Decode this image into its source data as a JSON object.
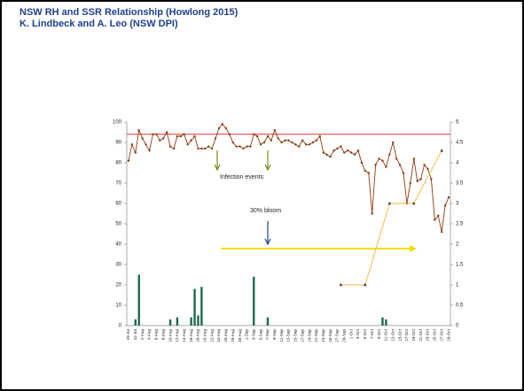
{
  "header": {
    "title": "NSW RH and SSR Relationship (Howlong 2015)",
    "subtitle": "K. Lindbeck and A. Leo (NSW DPI)"
  },
  "chart_data": {
    "type": "line",
    "categories": [
      "29-Jul",
      null,
      "31-Jul",
      null,
      "2-Aug",
      null,
      "4-Aug",
      null,
      "6-Aug",
      null,
      "8-Aug",
      null,
      "10-Aug",
      null,
      "12-Aug",
      null,
      "14-Aug",
      null,
      "16-Aug",
      null,
      "18-Aug",
      null,
      "20-Aug",
      null,
      "22-Aug",
      null,
      "24-Aug",
      null,
      "26-Aug",
      null,
      "28-Aug",
      null,
      "30-Aug",
      null,
      "1-Sep",
      null,
      "3-Sep",
      null,
      "5-Sep",
      null,
      "7-Sep",
      null,
      "9-Sep",
      null,
      "11-Sep",
      null,
      "13-Sep",
      null,
      "15-Sep",
      null,
      "17-Sep",
      null,
      "19-Sep",
      null,
      "21-Sep",
      null,
      "23-Sep",
      null,
      "25-Sep",
      null,
      "27-Sep",
      null,
      "29-Sep",
      null,
      "1-Oct",
      null,
      "3-Oct",
      null,
      "5-Oct",
      null,
      "7-Oct",
      null,
      "9-Oct",
      null,
      "11-Oct",
      null,
      "13-Oct",
      null,
      "15-Oct",
      null,
      "17-Oct",
      null,
      "19-Oct",
      null,
      "21-Oct",
      null,
      "23-Oct",
      null,
      "25-Oct",
      null,
      "27-Oct",
      null,
      "29-Oct"
    ],
    "series": [
      {
        "type": "bar",
        "color": "#1a6b4a",
        "values": [
          null,
          null,
          3,
          25,
          null,
          null,
          null,
          null,
          null,
          null,
          null,
          null,
          3,
          null,
          4,
          null,
          null,
          null,
          4,
          18,
          5,
          19,
          null,
          null,
          null,
          null,
          null,
          null,
          null,
          null,
          null,
          null,
          null,
          null,
          null,
          null,
          24,
          null,
          null,
          null,
          4,
          null,
          null,
          null,
          null,
          null,
          null,
          null,
          null,
          null,
          null,
          null,
          null,
          null,
          null,
          null,
          null,
          null,
          null,
          null,
          null,
          null,
          null,
          null,
          null,
          null,
          null,
          null,
          null,
          null,
          null,
          null,
          null,
          4,
          3,
          null,
          null,
          null,
          null,
          null,
          null,
          null,
          null,
          null,
          null,
          null,
          null,
          null,
          null,
          null,
          null,
          null,
          null
        ]
      },
      {
        "type": "line",
        "color": "#8b3a0f",
        "marker": "circle",
        "values": [
          81,
          89,
          85,
          96,
          92,
          89,
          86,
          94,
          94,
          91,
          92,
          95,
          88,
          87,
          93,
          93,
          94,
          89,
          91,
          93,
          87,
          87,
          87,
          88,
          87,
          92,
          97,
          99,
          97,
          94,
          90,
          88,
          88,
          87,
          88,
          88,
          94,
          93,
          89,
          90,
          93,
          91,
          96,
          92,
          90,
          91,
          91,
          90,
          89,
          88,
          91,
          89,
          89,
          90,
          91,
          93,
          85,
          84,
          83,
          86,
          87,
          88,
          85,
          86,
          85,
          84,
          86,
          80,
          76,
          75,
          55,
          79,
          82,
          81,
          78,
          84,
          90,
          82,
          79,
          75,
          60,
          70,
          82,
          71,
          72,
          79,
          77,
          72,
          52,
          54,
          46,
          59,
          63
        ]
      },
      {
        "type": "line",
        "axis": "y2",
        "color": "#f5b335",
        "marker": "triangle",
        "marker_color": "#333333",
        "connect_gaps": true,
        "values": [
          null,
          null,
          null,
          null,
          null,
          null,
          null,
          null,
          null,
          null,
          null,
          null,
          null,
          null,
          null,
          null,
          null,
          null,
          null,
          null,
          null,
          null,
          null,
          null,
          null,
          null,
          null,
          null,
          null,
          null,
          null,
          null,
          null,
          null,
          null,
          null,
          null,
          null,
          null,
          null,
          null,
          null,
          null,
          null,
          null,
          null,
          null,
          null,
          null,
          null,
          null,
          null,
          null,
          null,
          null,
          null,
          null,
          null,
          null,
          null,
          null,
          1,
          null,
          null,
          null,
          null,
          null,
          null,
          1,
          null,
          null,
          null,
          null,
          null,
          null,
          3,
          null,
          null,
          null,
          null,
          null,
          null,
          3,
          null,
          null,
          null,
          null,
          null,
          null,
          null,
          4.3,
          null,
          null
        ]
      }
    ],
    "ylim": [
      0,
      100
    ],
    "yticks": [
      0,
      10,
      20,
      30,
      40,
      50,
      60,
      70,
      80,
      90,
      100
    ],
    "y2lim": [
      0,
      5
    ],
    "y2ticks": [
      0,
      0.5,
      1,
      1.5,
      2,
      2.5,
      3,
      3.5,
      4,
      4.5,
      5
    ],
    "grid": false,
    "reference_line": {
      "value": 94,
      "color": "#e03030"
    },
    "annotations": [
      "Infection events",
      "30% bloom"
    ]
  }
}
